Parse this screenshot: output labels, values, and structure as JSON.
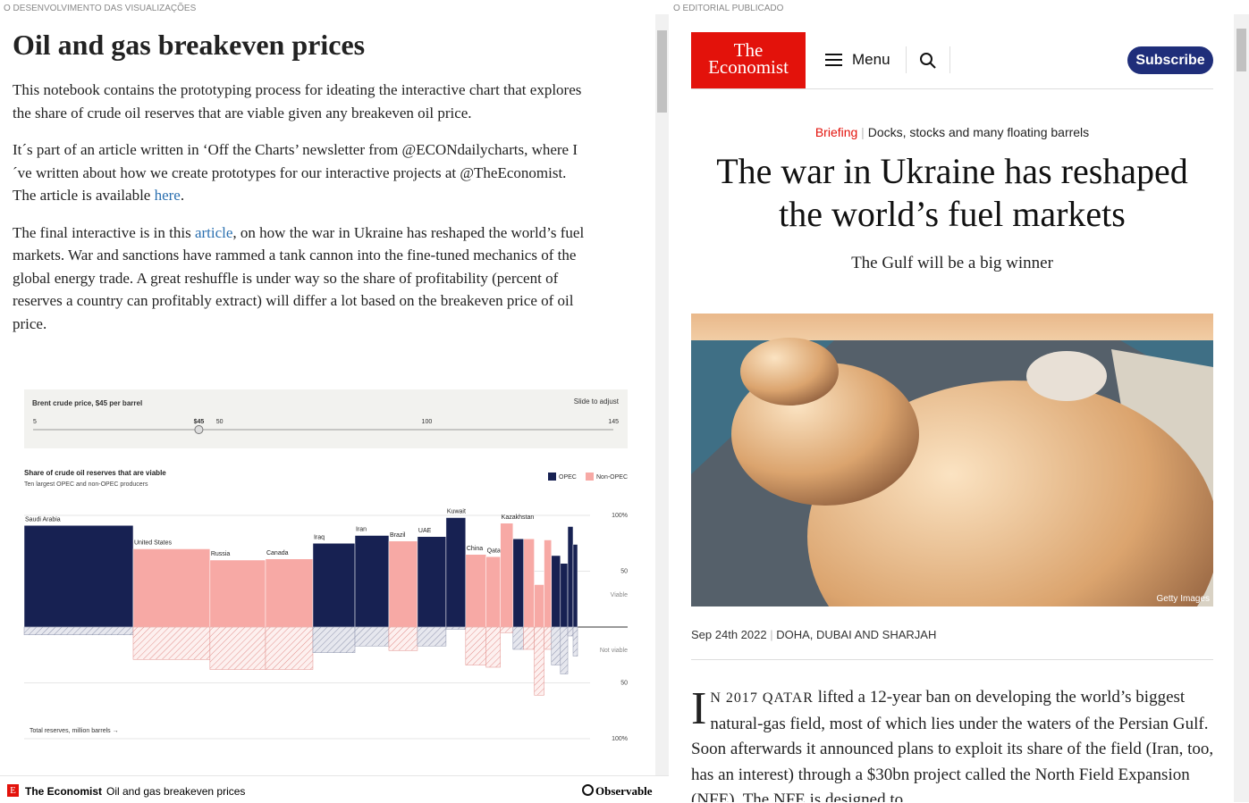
{
  "left_pane": {
    "label": "O DESENVOLVIMENTO DAS VISUALIZAÇÕES",
    "title": "Oil and gas breakeven prices",
    "paragraphs": [
      {
        "parts": [
          "This notebook contains the prototyping process for ideating the interactive chart that explores the share of crude oil reserves that are viable given any breakeven oil price."
        ]
      },
      {
        "parts": [
          "It´s part of an article written in ‘Off the Charts’ newsletter from @ECONdailycharts, where I´ve written about how we create prototypes for our interactive projects at @TheEconomist. The article is available ",
          {
            "link": "here"
          },
          "."
        ]
      },
      {
        "parts": [
          "The final interactive is in this ",
          {
            "link": "article"
          },
          ", on how the war in Ukraine has reshaped the world’s fuel markets. War and sanctions have rammed a tank cannon into the fine-tuned mechanics of the global energy trade. A great reshuffle is under way so the share of profitability (percent of reserves a country can profitably extract) will differ a lot based on the breakeven price of oil price."
        ]
      }
    ],
    "slider": {
      "label": "Brent crude price, $45 per barrel",
      "hint": "Slide to adjust",
      "min": 5,
      "max": 145,
      "value": 45,
      "value_label": "$45",
      "ticks": [
        50,
        100
      ]
    },
    "chart": {
      "type": "bar",
      "title": "Share of crude oil reserves that are viable",
      "subtitle": "Ten largest OPEC and non-OPEC producers",
      "legend": [
        {
          "name": "OPEC",
          "color": "#172152"
        },
        {
          "name": "Non-OPEC",
          "color": "#f7a9a5"
        }
      ],
      "categories": [
        "Saudi Arabia",
        "United States",
        "Russia",
        "Canada",
        "Iraq",
        "Iran",
        "Brazil",
        "UAE",
        "Kuwait",
        "China",
        "Qatar",
        "Kazakhstan",
        null,
        null,
        null,
        null,
        null,
        null,
        null,
        null
      ],
      "opec": [
        true,
        false,
        false,
        false,
        true,
        true,
        false,
        true,
        true,
        false,
        false,
        false,
        true,
        false,
        false,
        false,
        true,
        true,
        true,
        true
      ],
      "reserves": [
        267000,
        188000,
        136000,
        116000,
        103000,
        83000,
        70000,
        70000,
        48000,
        50000,
        35000,
        31000,
        26000,
        26000,
        24000,
        18000,
        22000,
        18000,
        13000,
        11000
      ],
      "viable": [
        91,
        70,
        60,
        61,
        75,
        82,
        77,
        81,
        98,
        65,
        63,
        93,
        79,
        79,
        38,
        78,
        64,
        57,
        90,
        74
      ],
      "not_viable": [
        7,
        29,
        38,
        38,
        23,
        17,
        21,
        17,
        2,
        34,
        36,
        5,
        20,
        20,
        61,
        20,
        34,
        42,
        8,
        26
      ],
      "viable_label": "Viable",
      "not_viable_label": "Not viable",
      "x_label": "Total reserves, million barrels →",
      "ylim": [
        -100,
        100
      ],
      "yticks": [
        {
          "value": 100,
          "label": "100%"
        },
        50,
        {
          "value": -50,
          "label": "50"
        },
        {
          "value": -100,
          "label": "100%"
        }
      ]
    }
  },
  "footer": {
    "brand": "The Economist",
    "notebook": "Oil and gas breakeven prices",
    "platform": "Observable"
  },
  "right_pane": {
    "label": "O EDITORIAL PUBLICADO",
    "logo": [
      "The",
      "Economist"
    ],
    "menu": "Menu",
    "subscribe": "Subscribe",
    "section": "Briefing",
    "rubric": "Docks, stocks and many floating barrels",
    "headline": "The war in Ukraine has reshaped the world’s fuel markets",
    "standfirst": "The Gulf will be a big winner",
    "image_credit": "Getty Images",
    "date": "Sep 24th 2022",
    "location": "DOHA, DUBAI AND SHARJAH",
    "drop_cap": "I",
    "lead": "N 2017 QATAR",
    "body": " lifted a 12-year ban on developing the world’s biggest natural-gas field, most of which lies under the waters of the Persian Gulf. Soon afterwards it announced plans to exploit its share of the field (Iran, too, has an interest) through a $30bn project called the North Field Expansion (NFE). The NFE is designed to"
  }
}
